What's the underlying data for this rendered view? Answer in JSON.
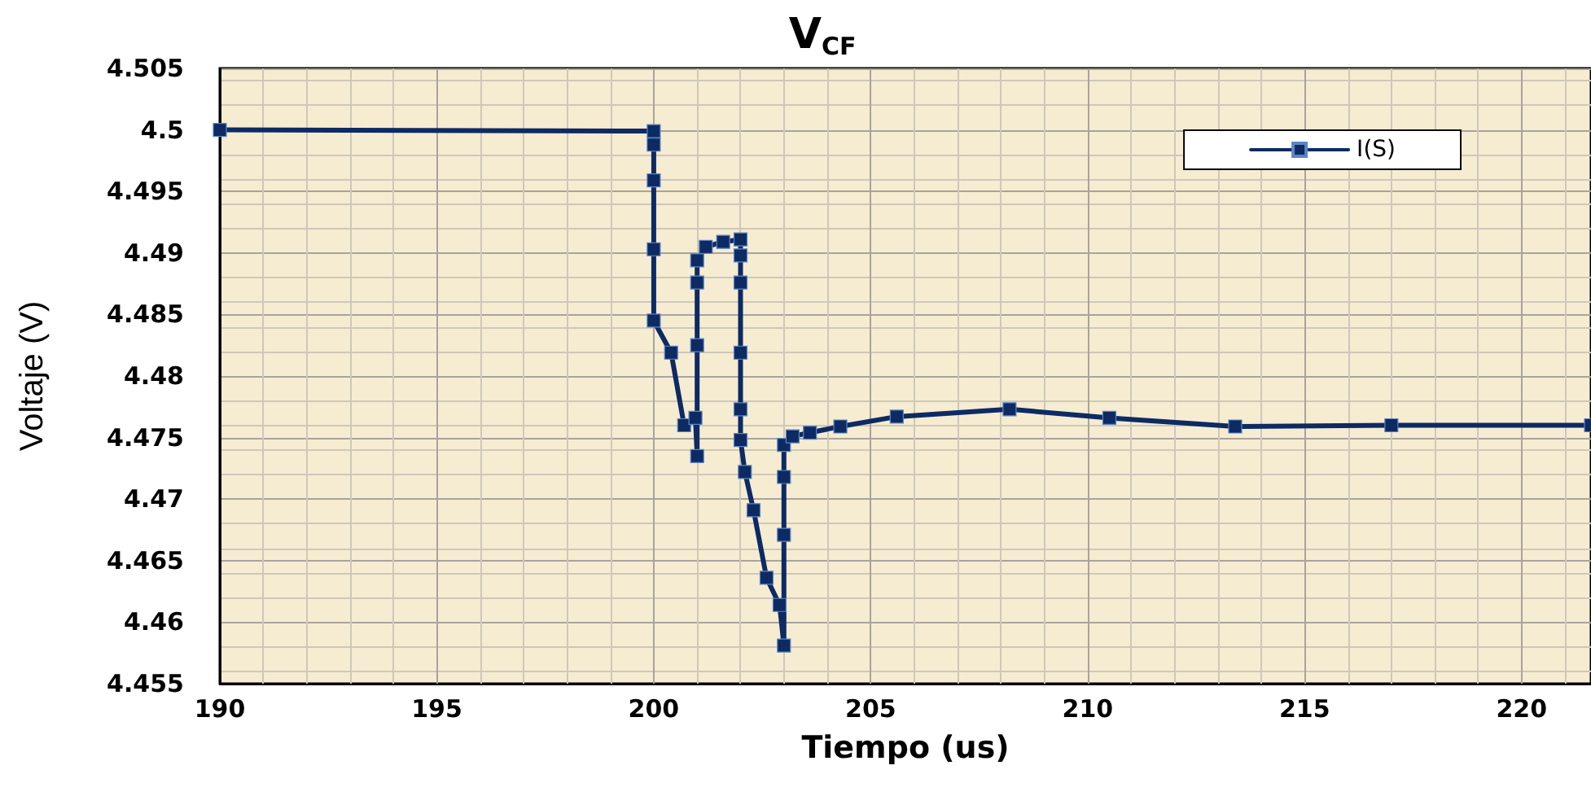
{
  "chart_data": {
    "type": "line",
    "title": "V$_{CF}$",
    "xlabel": "Tiempo (us)",
    "ylabel": "Voltaje (V)",
    "x": [
      190,
      200,
      200,
      200,
      200,
      200,
      200.4,
      200.7,
      200.96,
      201,
      201,
      201,
      201,
      201.2,
      201.6,
      202,
      202,
      202,
      202,
      202,
      202,
      202.1,
      202.3,
      202.6,
      202.9,
      203,
      203,
      203,
      203,
      203.2,
      203.6,
      204.3,
      205.6,
      208.2,
      210.5,
      213.4,
      217,
      221.6
    ],
    "series": [
      {
        "name": "I(S)",
        "color": "#0d2a63",
        "values": [
          4.5,
          4.4999,
          4.4988,
          4.4959,
          4.4903,
          4.4845,
          4.4819,
          4.476,
          4.4766,
          4.4735,
          4.4825,
          4.4876,
          4.4894,
          4.4905,
          4.4909,
          4.4911,
          4.4898,
          4.4876,
          4.4819,
          4.4773,
          4.4748,
          4.4722,
          4.4691,
          4.4636,
          4.4614,
          4.4581,
          4.4671,
          4.4718,
          4.4744,
          4.4751,
          4.4754,
          4.4759,
          4.4767,
          4.4773,
          4.4766,
          4.4759,
          4.476,
          4.476
        ]
      }
    ],
    "xlim": [
      190,
      221.6
    ],
    "xticks": [
      190,
      195,
      200,
      205,
      210,
      215,
      220
    ],
    "ylim": [
      4.455,
      4.505
    ],
    "yticks": [
      4.455,
      4.46,
      4.465,
      4.47,
      4.475,
      4.48,
      4.485,
      4.49,
      4.495,
      4.5,
      4.505
    ],
    "grid": true,
    "legend": "top right",
    "marker": "square",
    "line_style": "solid"
  }
}
